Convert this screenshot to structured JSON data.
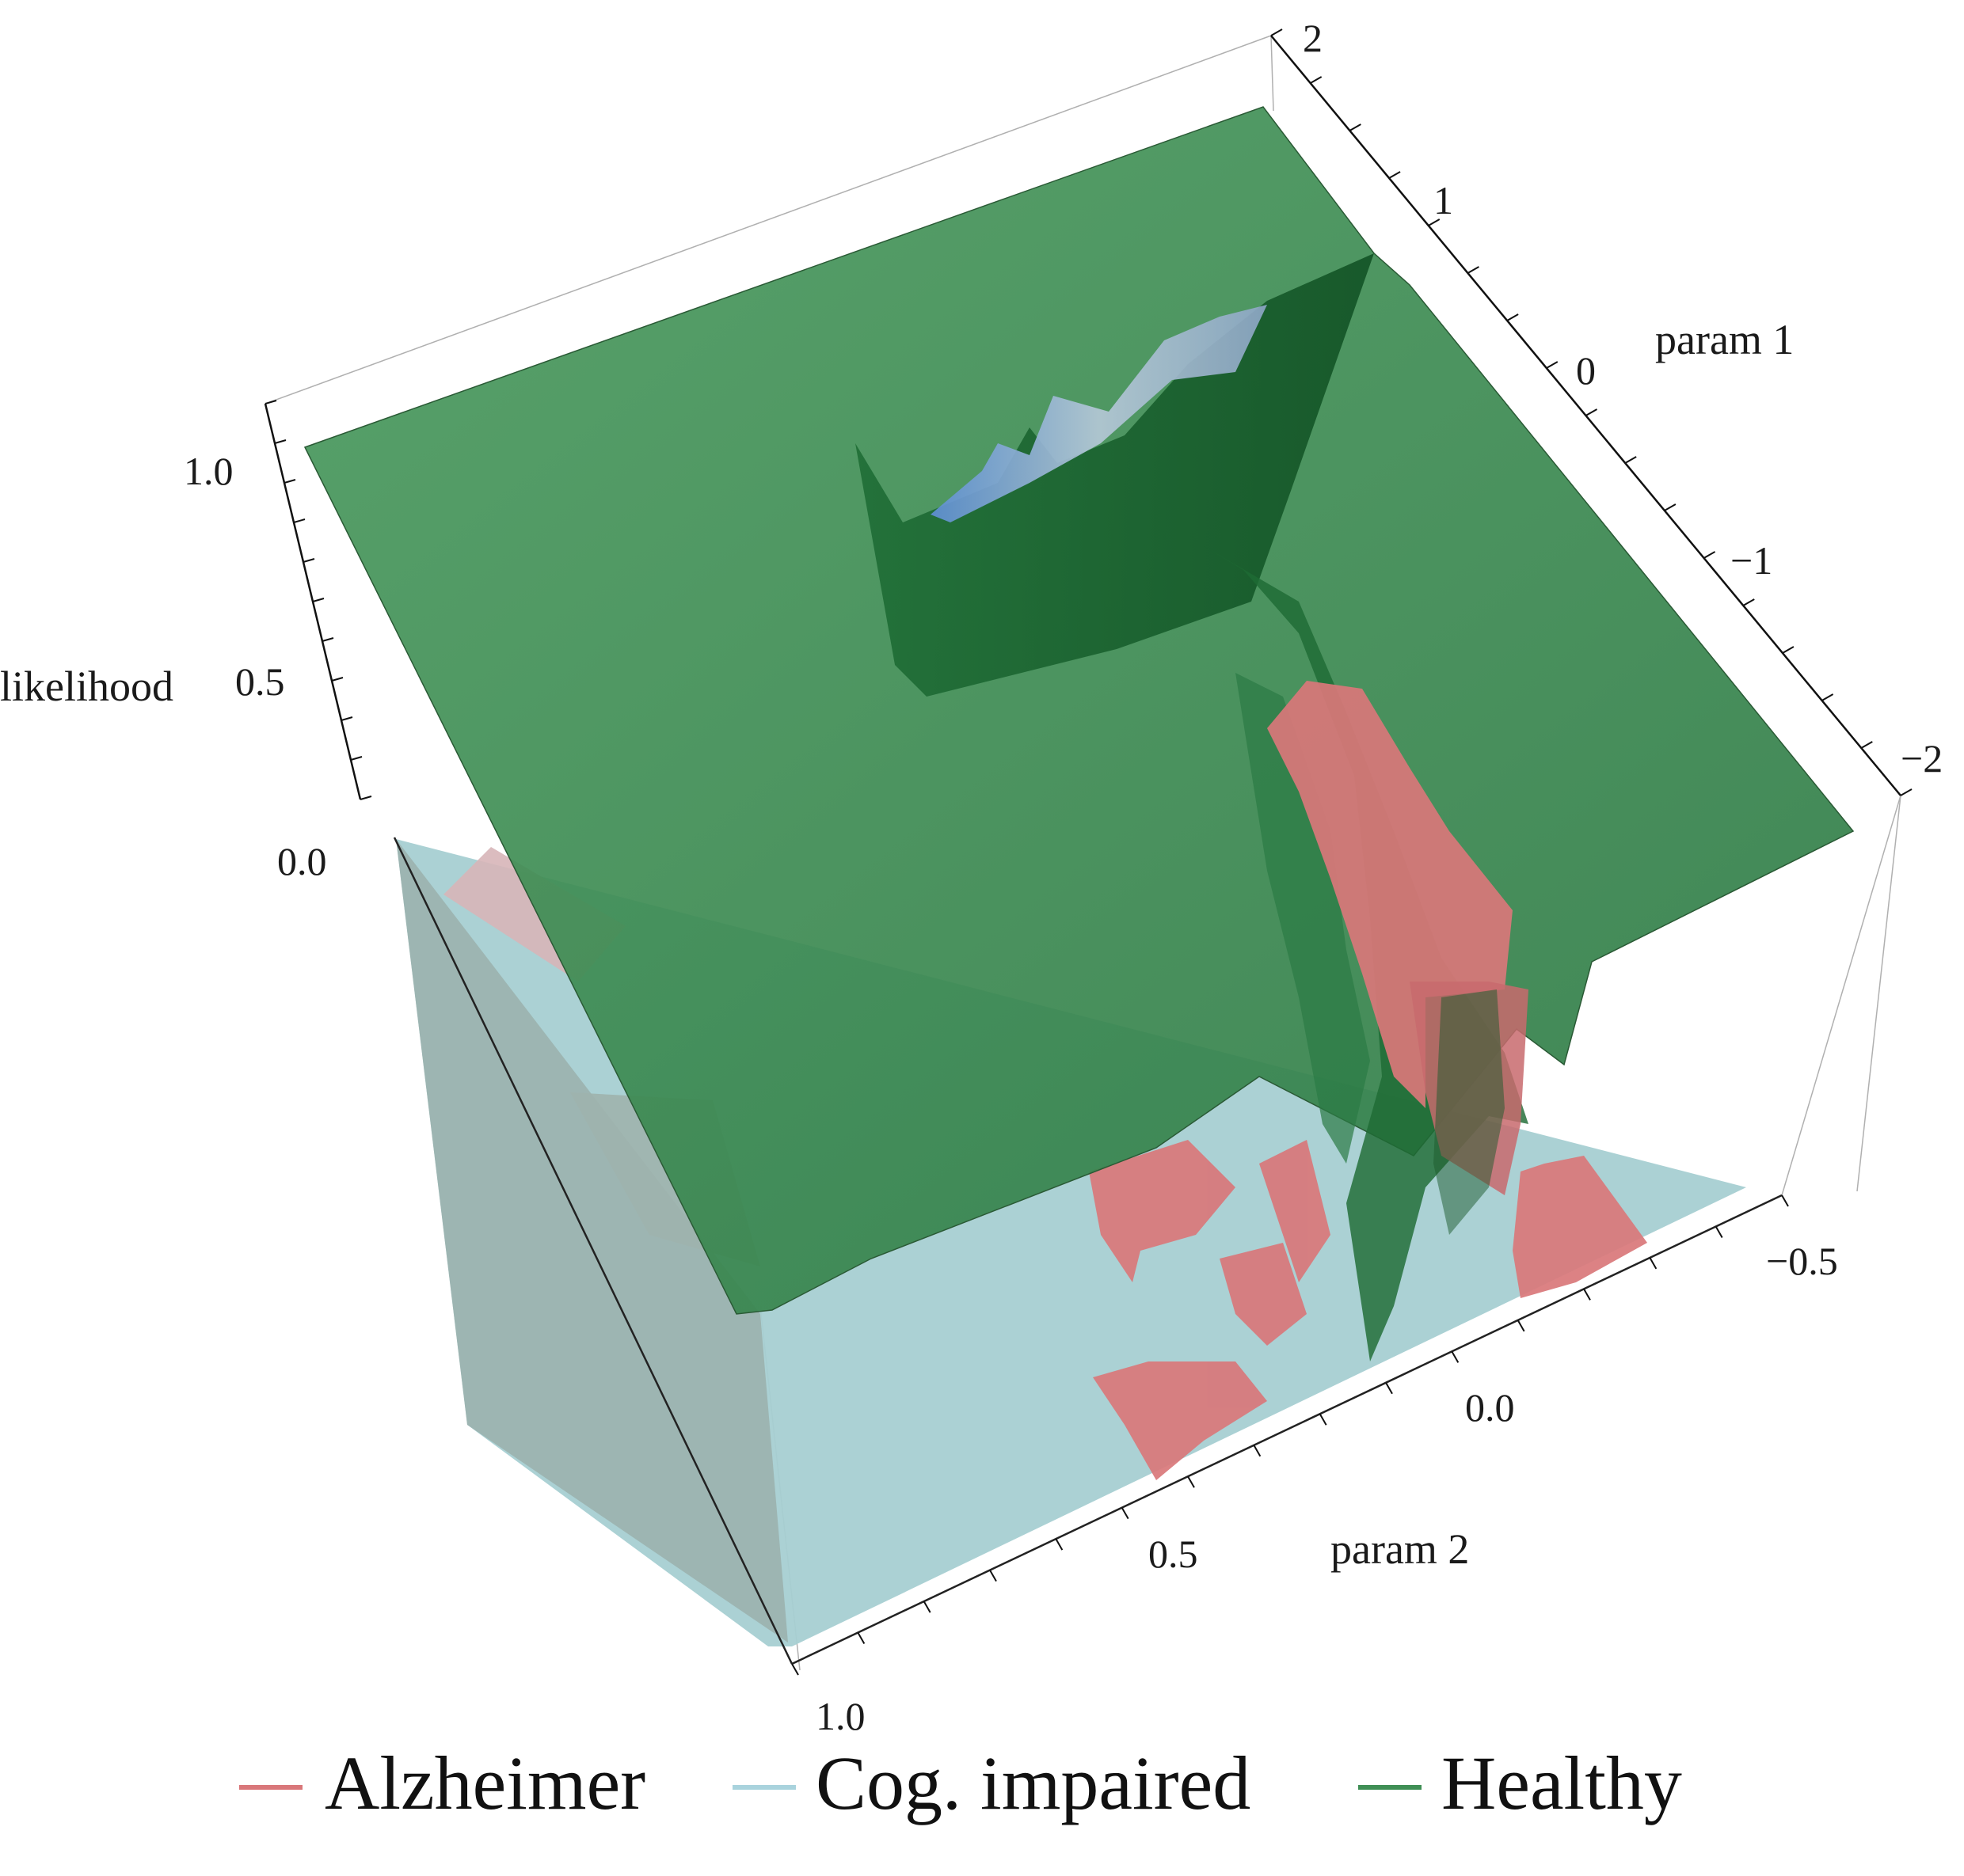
{
  "chart_data": {
    "type": "surface3d",
    "title": "",
    "xlabel": "param 1",
    "ylabel": "param 2",
    "zlabel": "likelihood",
    "xlim": [
      -2,
      2
    ],
    "ylim": [
      -0.5,
      1.0
    ],
    "zlim": [
      0.0,
      1.0
    ],
    "x_ticks": [
      "2",
      "1",
      "0",
      "−1",
      "−2"
    ],
    "y_ticks": [
      "−0.5",
      "0.0",
      "0.5",
      "1.0"
    ],
    "z_ticks": [
      "1.0",
      "0.5",
      "0.0"
    ],
    "grid": false,
    "legend_position": "bottom",
    "series": [
      {
        "name": "Alzheimer",
        "color": "#d9777a",
        "description_values": {
          "region": {
            "param1": [
              -1.0,
              0.0
            ],
            "param2": [
              -0.1,
              0.6
            ]
          },
          "peak_likelihood": 0.5
        }
      },
      {
        "name": "Cog. impaired",
        "color": "#a9d3dd",
        "description_values": {
          "region": {
            "param1": [
              -2,
              2
            ],
            "param2": [
              -0.5,
              1.0
            ]
          },
          "peak_likelihood": 0.3
        }
      },
      {
        "name": "Healthy",
        "color": "#3f8f55",
        "description_values": {
          "plateau_likelihood": 0.9,
          "plateau_region": {
            "param1": [
              -2,
              2
            ],
            "param2": [
              0.15,
              1.0
            ]
          },
          "ridge_param2": [
            0.0,
            0.15
          ],
          "ridge_param1": [
            -1.5,
            1.5
          ],
          "floor_likelihood": 0.0
        }
      }
    ]
  }
}
